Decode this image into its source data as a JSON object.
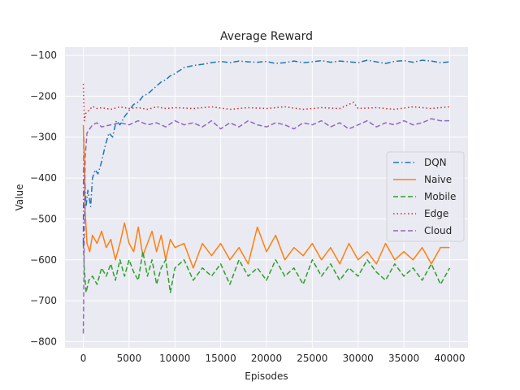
{
  "chart_data": {
    "type": "line",
    "title": "Average Reward",
    "xlabel": "Episodes",
    "ylabel": "Value",
    "xlim": [
      -2000,
      42000
    ],
    "ylim": [
      -815,
      -80
    ],
    "xticks": [
      0,
      5000,
      10000,
      15000,
      20000,
      25000,
      30000,
      35000,
      40000
    ],
    "yticks": [
      -100,
      -200,
      -300,
      -400,
      -500,
      -600,
      -700,
      -800
    ],
    "grid": true,
    "legend_position": "center-right",
    "colors": {
      "plot_bg": "#eaeaf2",
      "grid": "#ffffff",
      "DQN": "#1f77b4",
      "Naive": "#ff7f0e",
      "Mobile": "#2ca02c",
      "Edge": "#d62728",
      "Cloud": "#9467bd"
    },
    "series": [
      {
        "name": "DQN",
        "line_style": "dashdot",
        "points": [
          [
            0,
            -560
          ],
          [
            50,
            -300
          ],
          [
            150,
            -400
          ],
          [
            300,
            -470
          ],
          [
            500,
            -430
          ],
          [
            800,
            -470
          ],
          [
            1000,
            -400
          ],
          [
            1300,
            -380
          ],
          [
            1600,
            -390
          ],
          [
            2000,
            -360
          ],
          [
            2400,
            -320
          ],
          [
            2800,
            -290
          ],
          [
            3200,
            -300
          ],
          [
            3600,
            -260
          ],
          [
            4000,
            -270
          ],
          [
            4500,
            -250
          ],
          [
            5000,
            -235
          ],
          [
            5500,
            -220
          ],
          [
            6000,
            -215
          ],
          [
            6500,
            -200
          ],
          [
            7000,
            -195
          ],
          [
            7500,
            -185
          ],
          [
            8000,
            -175
          ],
          [
            8500,
            -165
          ],
          [
            9000,
            -160
          ],
          [
            9500,
            -150
          ],
          [
            10000,
            -145
          ],
          [
            11000,
            -130
          ],
          [
            12000,
            -125
          ],
          [
            13000,
            -122
          ],
          [
            14000,
            -118
          ],
          [
            15000,
            -115
          ],
          [
            16000,
            -118
          ],
          [
            17000,
            -114
          ],
          [
            18000,
            -116
          ],
          [
            19000,
            -117
          ],
          [
            20000,
            -115
          ],
          [
            21000,
            -120
          ],
          [
            22000,
            -118
          ],
          [
            23000,
            -114
          ],
          [
            24000,
            -118
          ],
          [
            25000,
            -116
          ],
          [
            26000,
            -113
          ],
          [
            27000,
            -117
          ],
          [
            28000,
            -114
          ],
          [
            29000,
            -116
          ],
          [
            30000,
            -118
          ],
          [
            31000,
            -112
          ],
          [
            32000,
            -116
          ],
          [
            33000,
            -120
          ],
          [
            34000,
            -115
          ],
          [
            35000,
            -113
          ],
          [
            36000,
            -117
          ],
          [
            37000,
            -112
          ],
          [
            38000,
            -114
          ],
          [
            39000,
            -118
          ],
          [
            40000,
            -116
          ]
        ]
      },
      {
        "name": "Naive",
        "line_style": "solid",
        "points": [
          [
            0,
            -270
          ],
          [
            100,
            -360
          ],
          [
            200,
            -480
          ],
          [
            400,
            -560
          ],
          [
            700,
            -580
          ],
          [
            1000,
            -540
          ],
          [
            1500,
            -560
          ],
          [
            2000,
            -530
          ],
          [
            2500,
            -570
          ],
          [
            3000,
            -550
          ],
          [
            3500,
            -600
          ],
          [
            4000,
            -560
          ],
          [
            4500,
            -510
          ],
          [
            5000,
            -560
          ],
          [
            5500,
            -580
          ],
          [
            6000,
            -520
          ],
          [
            6500,
            -590
          ],
          [
            7000,
            -560
          ],
          [
            7500,
            -530
          ],
          [
            8000,
            -580
          ],
          [
            8500,
            -540
          ],
          [
            9000,
            -600
          ],
          [
            9500,
            -550
          ],
          [
            10000,
            -570
          ],
          [
            11000,
            -560
          ],
          [
            12000,
            -620
          ],
          [
            13000,
            -560
          ],
          [
            14000,
            -590
          ],
          [
            15000,
            -560
          ],
          [
            16000,
            -600
          ],
          [
            17000,
            -570
          ],
          [
            18000,
            -610
          ],
          [
            19000,
            -520
          ],
          [
            20000,
            -580
          ],
          [
            21000,
            -540
          ],
          [
            22000,
            -600
          ],
          [
            23000,
            -570
          ],
          [
            24000,
            -590
          ],
          [
            25000,
            -560
          ],
          [
            26000,
            -600
          ],
          [
            27000,
            -570
          ],
          [
            28000,
            -610
          ],
          [
            29000,
            -560
          ],
          [
            30000,
            -600
          ],
          [
            31000,
            -580
          ],
          [
            32000,
            -610
          ],
          [
            33000,
            -560
          ],
          [
            34000,
            -600
          ],
          [
            35000,
            -580
          ],
          [
            36000,
            -600
          ],
          [
            37000,
            -570
          ],
          [
            38000,
            -610
          ],
          [
            39000,
            -570
          ],
          [
            40000,
            -570
          ]
        ]
      },
      {
        "name": "Mobile",
        "line_style": "dashed",
        "points": [
          [
            0,
            -560
          ],
          [
            100,
            -620
          ],
          [
            300,
            -680
          ],
          [
            600,
            -650
          ],
          [
            1000,
            -640
          ],
          [
            1500,
            -660
          ],
          [
            2000,
            -620
          ],
          [
            2500,
            -640
          ],
          [
            3000,
            -610
          ],
          [
            3500,
            -650
          ],
          [
            4000,
            -600
          ],
          [
            4500,
            -640
          ],
          [
            5000,
            -600
          ],
          [
            5500,
            -630
          ],
          [
            6000,
            -650
          ],
          [
            6500,
            -580
          ],
          [
            7000,
            -640
          ],
          [
            7500,
            -600
          ],
          [
            8000,
            -660
          ],
          [
            8500,
            -620
          ],
          [
            9000,
            -600
          ],
          [
            9500,
            -680
          ],
          [
            10000,
            -620
          ],
          [
            11000,
            -600
          ],
          [
            12000,
            -650
          ],
          [
            13000,
            -620
          ],
          [
            14000,
            -640
          ],
          [
            15000,
            -610
          ],
          [
            16000,
            -660
          ],
          [
            17000,
            -600
          ],
          [
            18000,
            -640
          ],
          [
            19000,
            -620
          ],
          [
            20000,
            -650
          ],
          [
            21000,
            -600
          ],
          [
            22000,
            -640
          ],
          [
            23000,
            -620
          ],
          [
            24000,
            -660
          ],
          [
            25000,
            -600
          ],
          [
            26000,
            -640
          ],
          [
            27000,
            -610
          ],
          [
            28000,
            -650
          ],
          [
            29000,
            -620
          ],
          [
            30000,
            -640
          ],
          [
            31000,
            -600
          ],
          [
            32000,
            -630
          ],
          [
            33000,
            -650
          ],
          [
            34000,
            -610
          ],
          [
            35000,
            -640
          ],
          [
            36000,
            -620
          ],
          [
            37000,
            -650
          ],
          [
            38000,
            -610
          ],
          [
            39000,
            -660
          ],
          [
            40000,
            -620
          ]
        ]
      },
      {
        "name": "Edge",
        "line_style": "dotted",
        "points": [
          [
            0,
            -170
          ],
          [
            100,
            -260
          ],
          [
            300,
            -240
          ],
          [
            600,
            -235
          ],
          [
            1000,
            -225
          ],
          [
            1500,
            -230
          ],
          [
            2000,
            -228
          ],
          [
            3000,
            -232
          ],
          [
            4000,
            -226
          ],
          [
            5000,
            -230
          ],
          [
            6000,
            -228
          ],
          [
            7000,
            -232
          ],
          [
            8000,
            -226
          ],
          [
            9000,
            -230
          ],
          [
            10000,
            -228
          ],
          [
            12000,
            -230
          ],
          [
            14000,
            -226
          ],
          [
            16000,
            -232
          ],
          [
            18000,
            -228
          ],
          [
            20000,
            -230
          ],
          [
            22000,
            -226
          ],
          [
            24000,
            -232
          ],
          [
            26000,
            -228
          ],
          [
            28000,
            -230
          ],
          [
            29500,
            -215
          ],
          [
            30000,
            -230
          ],
          [
            32000,
            -228
          ],
          [
            34000,
            -232
          ],
          [
            36000,
            -226
          ],
          [
            38000,
            -230
          ],
          [
            40000,
            -226
          ]
        ]
      },
      {
        "name": "Cloud",
        "line_style": "dashed",
        "points": [
          [
            0,
            -780
          ],
          [
            100,
            -550
          ],
          [
            200,
            -350
          ],
          [
            400,
            -290
          ],
          [
            700,
            -280
          ],
          [
            1000,
            -270
          ],
          [
            1500,
            -265
          ],
          [
            2000,
            -275
          ],
          [
            3000,
            -270
          ],
          [
            4000,
            -265
          ],
          [
            5000,
            -270
          ],
          [
            6000,
            -260
          ],
          [
            7000,
            -270
          ],
          [
            8000,
            -265
          ],
          [
            9000,
            -275
          ],
          [
            10000,
            -260
          ],
          [
            11000,
            -270
          ],
          [
            12000,
            -265
          ],
          [
            13000,
            -275
          ],
          [
            14000,
            -260
          ],
          [
            15000,
            -280
          ],
          [
            16000,
            -265
          ],
          [
            17000,
            -275
          ],
          [
            18000,
            -260
          ],
          [
            19000,
            -270
          ],
          [
            20000,
            -275
          ],
          [
            21000,
            -265
          ],
          [
            22000,
            -270
          ],
          [
            23000,
            -280
          ],
          [
            24000,
            -265
          ],
          [
            25000,
            -270
          ],
          [
            26000,
            -260
          ],
          [
            27000,
            -275
          ],
          [
            28000,
            -265
          ],
          [
            29000,
            -280
          ],
          [
            30000,
            -270
          ],
          [
            31000,
            -260
          ],
          [
            32000,
            -275
          ],
          [
            33000,
            -265
          ],
          [
            34000,
            -270
          ],
          [
            35000,
            -260
          ],
          [
            36000,
            -270
          ],
          [
            37000,
            -265
          ],
          [
            38000,
            -255
          ],
          [
            39000,
            -260
          ],
          [
            40000,
            -260
          ]
        ]
      }
    ]
  }
}
